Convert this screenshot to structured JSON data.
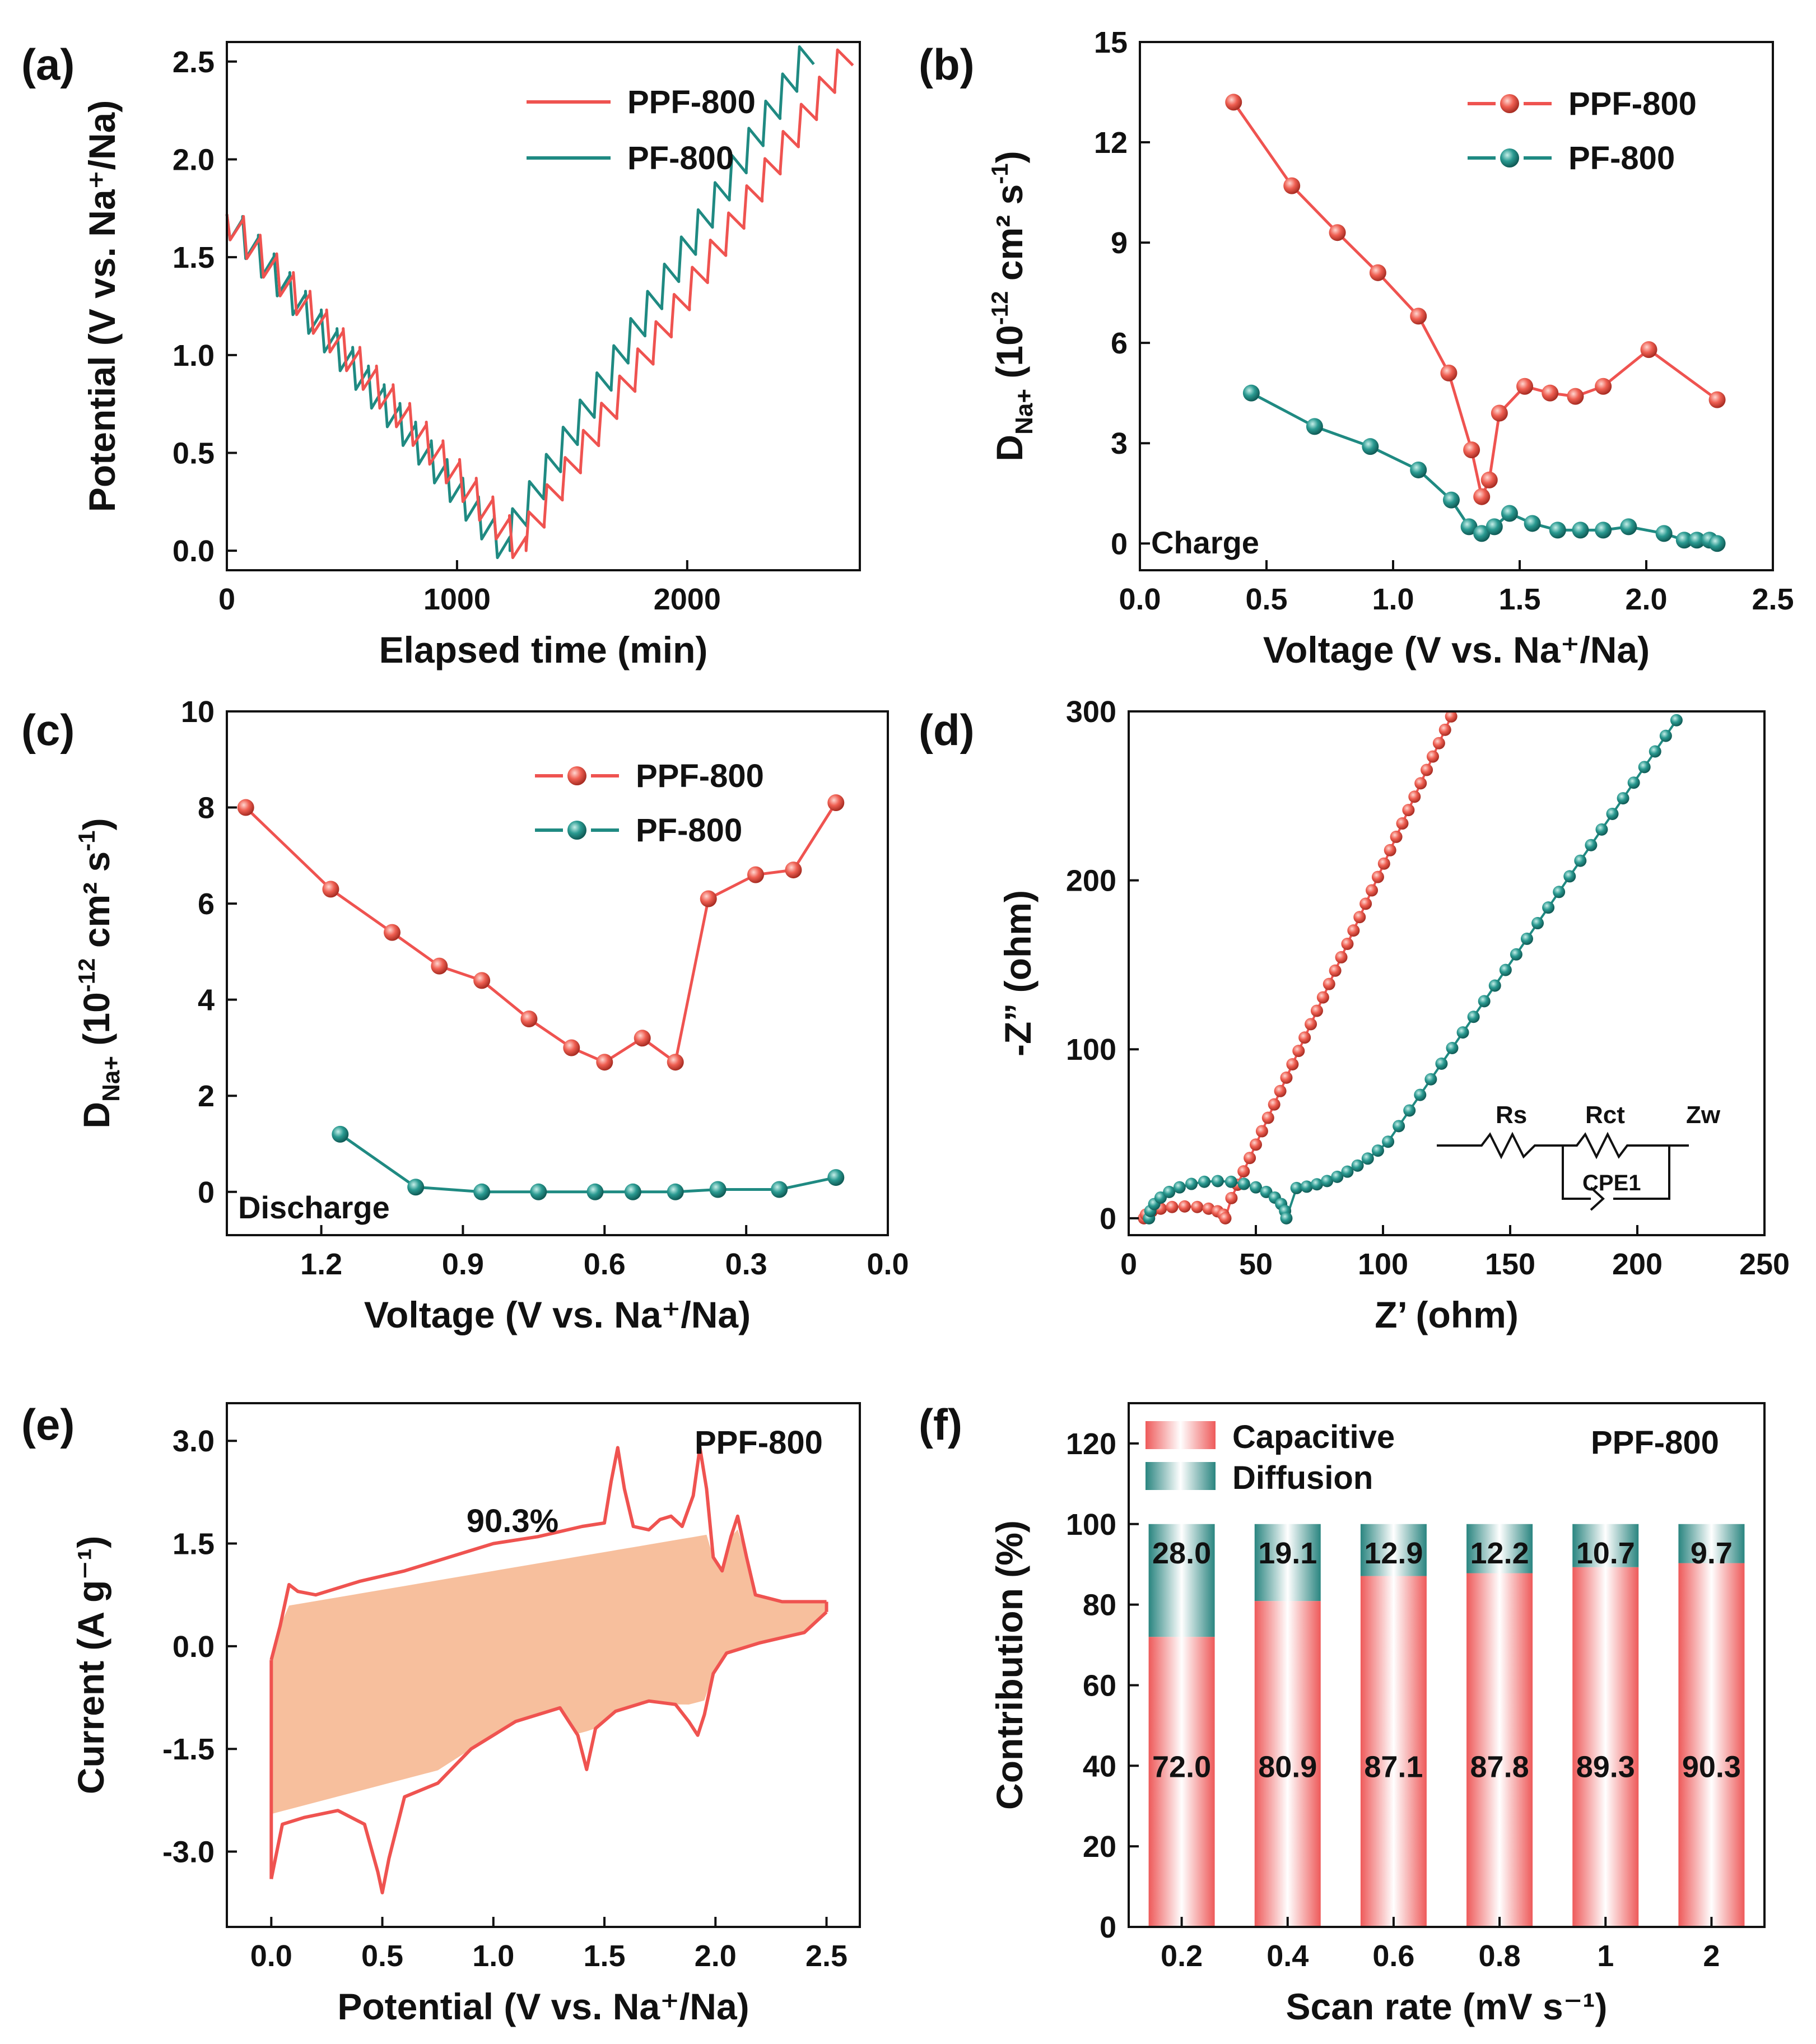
{
  "colors": {
    "ppf": "#ef5350",
    "pf": "#1f8a82",
    "fill_cv": "#f6b48c",
    "bar_cap": "#f06a6a",
    "bar_dif": "#2e8b86"
  },
  "chart_data": [
    {
      "panel": "(a)",
      "type": "line",
      "xlabel": "Elapsed time (min)",
      "ylabel": "Potential (V vs. Na⁺/Na)",
      "xlim": [
        0,
        2750
      ],
      "ylim": [
        -0.1,
        2.6
      ],
      "xticks": [
        0,
        1000,
        2000
      ],
      "yticks": [
        0.0,
        0.5,
        1.0,
        1.5,
        2.0,
        2.5
      ],
      "xtick_labels": [
        "0",
        "1000",
        "2000"
      ],
      "ytick_labels": [
        "0.0",
        "0.5",
        "1.0",
        "1.5",
        "2.0",
        "2.5"
      ],
      "legend_position": "top-right",
      "series": [
        {
          "name": "PPF-800",
          "discharge": {
            "t_start": 0,
            "t_end": 1300,
            "v_start": 1.72,
            "v_end": 0.0,
            "pulses": 18,
            "jump": 0.14
          },
          "charge": {
            "t_start": 1300,
            "t_end": 2720,
            "v_start": 0.0,
            "v_end": 2.5,
            "pulses": 18,
            "jump": 0.3
          }
        },
        {
          "name": "PF-800",
          "discharge": {
            "t_start": 0,
            "t_end": 1230,
            "v_start": 1.72,
            "v_end": 0.0,
            "pulses": 18,
            "jump": 0.14
          },
          "charge": {
            "t_start": 1230,
            "t_end": 2550,
            "v_start": 0.0,
            "v_end": 2.5,
            "pulses": 18,
            "jump": 0.38
          }
        }
      ]
    },
    {
      "panel": "(b)",
      "type": "line",
      "xlabel": "Voltage (V vs. Na⁺/Na)",
      "ylabel_main": "D",
      "ylabel_sub": "Na+",
      "ylabel_rest": " (10",
      "ylabel_exp": "-12",
      "ylabel_tail": " cm² s",
      "ylabel_exp2": "-1",
      "ylabel_end": ")",
      "annotation": "Charge",
      "xlim": [
        0.0,
        2.5
      ],
      "ylim": [
        -0.8,
        15
      ],
      "xticks": [
        0.0,
        0.5,
        1.0,
        1.5,
        2.0,
        2.5
      ],
      "yticks": [
        0,
        3,
        6,
        9,
        12,
        15
      ],
      "xtick_labels": [
        "0.0",
        "0.5",
        "1.0",
        "1.5",
        "2.0",
        "2.5"
      ],
      "ytick_labels": [
        "0",
        "3",
        "6",
        "9",
        "12",
        "15"
      ],
      "legend_position": "top-right",
      "series": [
        {
          "name": "PPF-800",
          "x": [
            0.37,
            0.6,
            0.78,
            0.94,
            1.1,
            1.22,
            1.31,
            1.35,
            1.38,
            1.42,
            1.52,
            1.62,
            1.72,
            1.83,
            2.01,
            2.28
          ],
          "y": [
            13.2,
            10.7,
            9.3,
            8.1,
            6.8,
            5.1,
            2.8,
            1.4,
            1.9,
            3.9,
            4.7,
            4.5,
            4.4,
            4.7,
            5.8,
            4.3
          ]
        },
        {
          "name": "PF-800",
          "x": [
            0.44,
            0.69,
            0.91,
            1.1,
            1.23,
            1.3,
            1.35,
            1.4,
            1.46,
            1.55,
            1.65,
            1.74,
            1.83,
            1.93,
            2.07,
            2.15,
            2.2,
            2.25,
            2.28
          ],
          "y": [
            4.5,
            3.5,
            2.9,
            2.2,
            1.3,
            0.5,
            0.3,
            0.5,
            0.9,
            0.6,
            0.4,
            0.4,
            0.4,
            0.5,
            0.3,
            0.1,
            0.1,
            0.1,
            0.0
          ]
        }
      ]
    },
    {
      "panel": "(c)",
      "type": "line",
      "xlabel": "Voltage (V vs. Na⁺/Na)",
      "ylabel_main": "D",
      "ylabel_sub": "Na+",
      "ylabel_rest": " (10",
      "ylabel_exp": "-12",
      "ylabel_tail": " cm² s",
      "ylabel_exp2": "-1",
      "ylabel_end": ")",
      "annotation": "Discharge",
      "xlim": [
        1.4,
        0.0
      ],
      "ylim": [
        -0.9,
        10
      ],
      "xticks": [
        1.2,
        0.9,
        0.6,
        0.3,
        0.0
      ],
      "yticks": [
        0,
        2,
        4,
        6,
        8,
        10
      ],
      "xtick_labels": [
        "1.2",
        "0.9",
        "0.6",
        "0.3",
        "0.0"
      ],
      "ytick_labels": [
        "0",
        "2",
        "4",
        "6",
        "8",
        "10"
      ],
      "legend_position": "top-right",
      "series": [
        {
          "name": "PPF-800",
          "x": [
            1.36,
            1.18,
            1.05,
            0.95,
            0.86,
            0.76,
            0.67,
            0.6,
            0.52,
            0.45,
            0.38,
            0.28,
            0.2,
            0.11
          ],
          "y": [
            8.0,
            6.3,
            5.4,
            4.7,
            4.4,
            3.6,
            3.0,
            2.7,
            3.2,
            2.7,
            6.1,
            6.6,
            6.7,
            8.1
          ]
        },
        {
          "name": "PF-800",
          "x": [
            1.16,
            1.0,
            0.86,
            0.74,
            0.62,
            0.54,
            0.45,
            0.36,
            0.23,
            0.11
          ],
          "y": [
            1.2,
            0.1,
            0.0,
            0.0,
            0.0,
            0.0,
            0.0,
            0.05,
            0.05,
            0.3
          ]
        }
      ]
    },
    {
      "panel": "(d)",
      "type": "scatter",
      "xlabel": "Z’ (ohm)",
      "ylabel": "-Z” (ohm)",
      "xlim": [
        0,
        250
      ],
      "ylim": [
        -10,
        300
      ],
      "xticks": [
        0,
        50,
        100,
        150,
        200,
        250
      ],
      "yticks": [
        0,
        100,
        200,
        300
      ],
      "xtick_labels": [
        "0",
        "50",
        "100",
        "150",
        "200",
        "250"
      ],
      "ytick_labels": [
        "0",
        "100",
        "200",
        "300"
      ],
      "circuit_labels": {
        "rs": "Rs",
        "rct": "Rct",
        "zw": "Zw",
        "cpe": "CPE1"
      },
      "series": [
        {
          "name": "PPF-800",
          "arc_start": 6,
          "arc_end": 38,
          "arc_height": 7,
          "tail_slope": 3.3,
          "tail_x_end": 121
        },
        {
          "name": "PF-800",
          "arc_start": 8,
          "arc_peak_x": 45,
          "arc_height": 22,
          "arc_end": 62,
          "tail_knee_x": 100,
          "tail_slope": 2.2,
          "tail_x_end": 214
        }
      ]
    },
    {
      "panel": "(e)",
      "type": "area",
      "xlabel": "Potential (V vs. Na⁺/Na)",
      "ylabel": "Current (A g⁻¹)",
      "annotation": "90.3%",
      "legend_label": "PPF-800",
      "xlim": [
        -0.2,
        2.65
      ],
      "ylim": [
        -4.1,
        3.55
      ],
      "xticks": [
        0.0,
        0.5,
        1.0,
        1.5,
        2.0,
        2.5
      ],
      "yticks": [
        -3.0,
        -1.5,
        0.0,
        1.5,
        3.0
      ],
      "xtick_labels": [
        "0.0",
        "0.5",
        "1.0",
        "1.5",
        "2.0",
        "2.5"
      ],
      "ytick_labels": [
        "-3.0",
        "-1.5",
        "0.0",
        "1.5",
        "3.0"
      ],
      "upper_curve": {
        "x": [
          0.0,
          0.04,
          0.08,
          0.12,
          0.2,
          0.4,
          0.6,
          0.8,
          1.0,
          1.2,
          1.4,
          1.5,
          1.53,
          1.56,
          1.59,
          1.63,
          1.7,
          1.75,
          1.8,
          1.85,
          1.9,
          1.93,
          1.96,
          1.99,
          2.03,
          2.07,
          2.1,
          2.14,
          2.18,
          2.3,
          2.5
        ],
        "y": [
          -0.2,
          0.3,
          0.9,
          0.8,
          0.75,
          0.95,
          1.1,
          1.3,
          1.5,
          1.6,
          1.75,
          1.8,
          2.4,
          2.9,
          2.3,
          1.75,
          1.7,
          1.85,
          1.9,
          1.75,
          2.2,
          2.9,
          2.3,
          1.3,
          1.1,
          1.6,
          1.9,
          1.3,
          0.75,
          0.65,
          0.65
        ]
      },
      "lower_curve": {
        "x": [
          0.0,
          0.05,
          0.15,
          0.3,
          0.42,
          0.48,
          0.5,
          0.53,
          0.6,
          0.75,
          0.9,
          1.1,
          1.3,
          1.38,
          1.42,
          1.46,
          1.55,
          1.7,
          1.82,
          1.88,
          1.92,
          1.95,
          1.99,
          2.05,
          2.2,
          2.4,
          2.5
        ],
        "y": [
          -3.4,
          -2.6,
          -2.5,
          -2.4,
          -2.6,
          -3.3,
          -3.6,
          -3.1,
          -2.2,
          -2.0,
          -1.5,
          -1.1,
          -0.9,
          -1.3,
          -1.8,
          -1.2,
          -0.95,
          -0.8,
          -0.85,
          -1.1,
          -1.3,
          -1.0,
          -0.4,
          -0.1,
          0.05,
          0.2,
          0.5
        ]
      }
    },
    {
      "panel": "(f)",
      "type": "bar",
      "title": "PPF-800",
      "xlabel": "Scan rate (mV s⁻¹)",
      "ylabel": "Contribution (%)",
      "ylim": [
        0,
        130
      ],
      "yticks": [
        0,
        20,
        40,
        60,
        80,
        100,
        120
      ],
      "ytick_labels": [
        "0",
        "20",
        "40",
        "60",
        "80",
        "100",
        "120"
      ],
      "categories": [
        "0.2",
        "0.4",
        "0.6",
        "0.8",
        "1",
        "2"
      ],
      "series": [
        {
          "name": "Capacitive",
          "values": [
            72.0,
            80.9,
            87.1,
            87.8,
            89.3,
            90.3
          ],
          "labels": [
            "72.0",
            "80.9",
            "87.1",
            "87.8",
            "89.3",
            "90.3"
          ]
        },
        {
          "name": "Diffusion",
          "values": [
            28.0,
            19.1,
            12.9,
            12.2,
            10.7,
            9.7
          ],
          "labels": [
            "28.0",
            "19.1",
            "12.9",
            "12.2",
            "10.7",
            "9.7"
          ]
        }
      ],
      "legend_position": "top-left"
    }
  ]
}
